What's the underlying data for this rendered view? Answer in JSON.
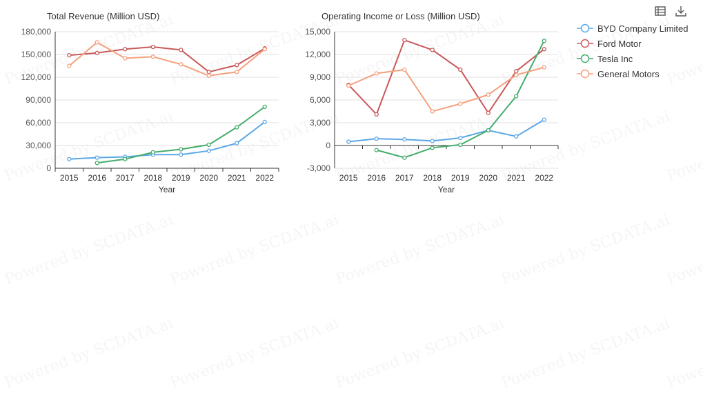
{
  "chart_data": [
    {
      "type": "line",
      "title": "Total Revenue (Million USD)",
      "xlabel": "Year",
      "ylabel": "",
      "categories": [
        "2015",
        "2016",
        "2017",
        "2018",
        "2019",
        "2020",
        "2021",
        "2022"
      ],
      "ylim": [
        0,
        180000
      ],
      "yticks": [
        0,
        30000,
        60000,
        90000,
        120000,
        150000,
        180000
      ],
      "ytick_labels": [
        "0",
        "30,000",
        "60,000",
        "90,000",
        "120,000",
        "150,000",
        "180,000"
      ],
      "grid": true,
      "series": [
        {
          "name": "BYD Company Limited",
          "values": [
            12000,
            14000,
            15000,
            18000,
            18000,
            23000,
            33000,
            61000
          ]
        },
        {
          "name": "Ford Motor",
          "values": [
            149000,
            152000,
            157000,
            160000,
            156000,
            127000,
            136000,
            158000
          ]
        },
        {
          "name": "Tesla Inc",
          "values": [
            null,
            7000,
            12000,
            21000,
            25000,
            31000,
            54000,
            81000
          ]
        },
        {
          "name": "General Motors",
          "values": [
            135000,
            166000,
            145000,
            147000,
            137000,
            122000,
            127000,
            157000
          ]
        }
      ]
    },
    {
      "type": "line",
      "title": "Operating Income or Loss (Million USD)",
      "xlabel": "Year",
      "ylabel": "",
      "categories": [
        "2015",
        "2016",
        "2017",
        "2018",
        "2019",
        "2020",
        "2021",
        "2022"
      ],
      "ylim": [
        -3000,
        15000
      ],
      "yticks": [
        -3000,
        0,
        3000,
        6000,
        9000,
        12000,
        15000
      ],
      "ytick_labels": [
        "-3,000",
        "0",
        "3,000",
        "6,000",
        "9,000",
        "12,000",
        "15,000"
      ],
      "grid": true,
      "series": [
        {
          "name": "BYD Company Limited",
          "values": [
            500,
            900,
            800,
            600,
            1000,
            2000,
            1200,
            3400
          ]
        },
        {
          "name": "Ford Motor",
          "values": [
            8000,
            4100,
            13900,
            12600,
            10000,
            4300,
            9800,
            12700
          ]
        },
        {
          "name": "Tesla Inc",
          "values": [
            null,
            -600,
            -1600,
            -300,
            100,
            2000,
            6500,
            13800
          ]
        },
        {
          "name": "General Motors",
          "values": [
            7900,
            9500,
            10000,
            4500,
            5500,
            6700,
            9300,
            10300
          ]
        }
      ]
    }
  ],
  "legend": {
    "placement": "top-right",
    "items": [
      {
        "name": "BYD Company Limited",
        "color": "#5aa7e8"
      },
      {
        "name": "Ford Motor",
        "color": "#c9585a"
      },
      {
        "name": "Tesla Inc",
        "color": "#43ac6a"
      },
      {
        "name": "General Motors",
        "color": "#f5a07e"
      }
    ]
  },
  "toolbar": {
    "icons": [
      "data-view-icon",
      "download-icon"
    ]
  },
  "watermark": "Powered by SCDATA.ai"
}
